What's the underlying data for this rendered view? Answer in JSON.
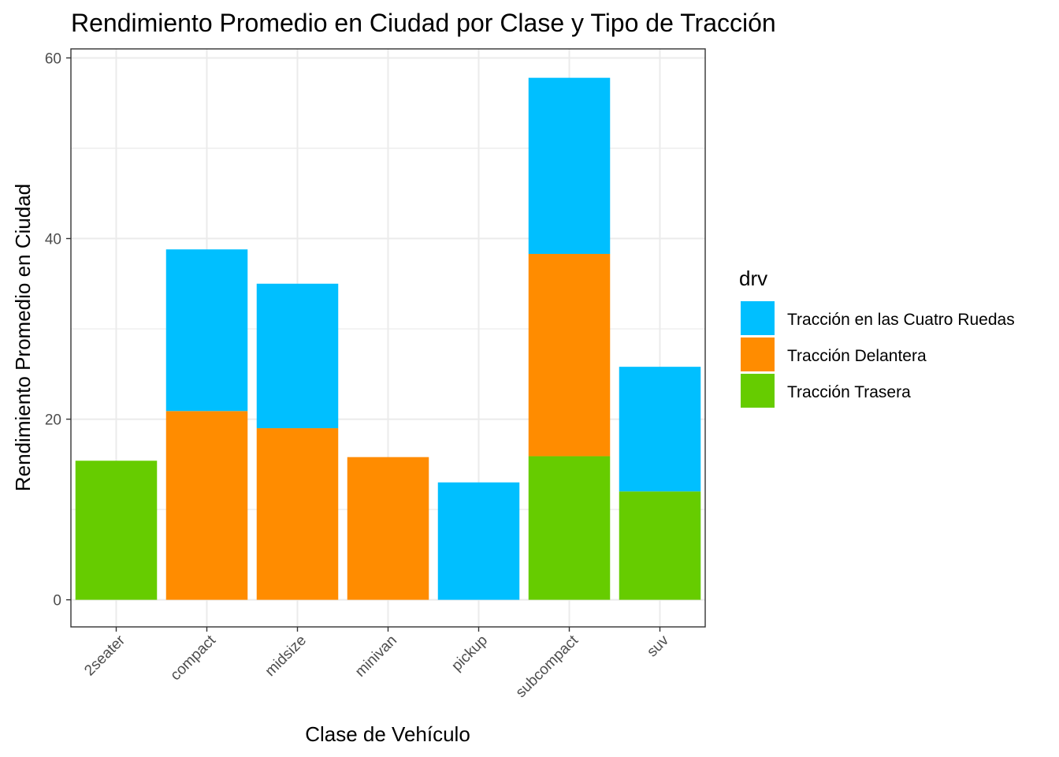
{
  "chart_data": {
    "type": "bar",
    "stacked": true,
    "title": "Rendimiento Promedio en Ciudad por Clase y Tipo de Tracción",
    "xlabel": "Clase de Vehículo",
    "ylabel": "Rendimiento Promedio en Ciudad",
    "ylim": [
      -3,
      61
    ],
    "yticks": [
      0,
      20,
      40,
      60
    ],
    "grid": true,
    "legend_title": "drv",
    "legend_position": "right",
    "categories": [
      "2seater",
      "compact",
      "midsize",
      "minivan",
      "pickup",
      "subcompact",
      "suv"
    ],
    "series": [
      {
        "name": "Tracción Trasera",
        "color": "#66cc00",
        "values": [
          15.4,
          0,
          0,
          0,
          0,
          15.9,
          12.0
        ]
      },
      {
        "name": "Tracción Delantera",
        "color": "#ff8c00",
        "values": [
          0,
          20.9,
          19.0,
          15.8,
          0,
          22.4,
          0
        ]
      },
      {
        "name": "Tracción en las Cuatro Ruedas",
        "color": "#00bfff",
        "values": [
          0,
          17.9,
          16.0,
          0,
          13.0,
          19.5,
          13.8
        ]
      }
    ],
    "legend_order": [
      "Tracción en las Cuatro Ruedas",
      "Tracción Delantera",
      "Tracción Trasera"
    ]
  }
}
